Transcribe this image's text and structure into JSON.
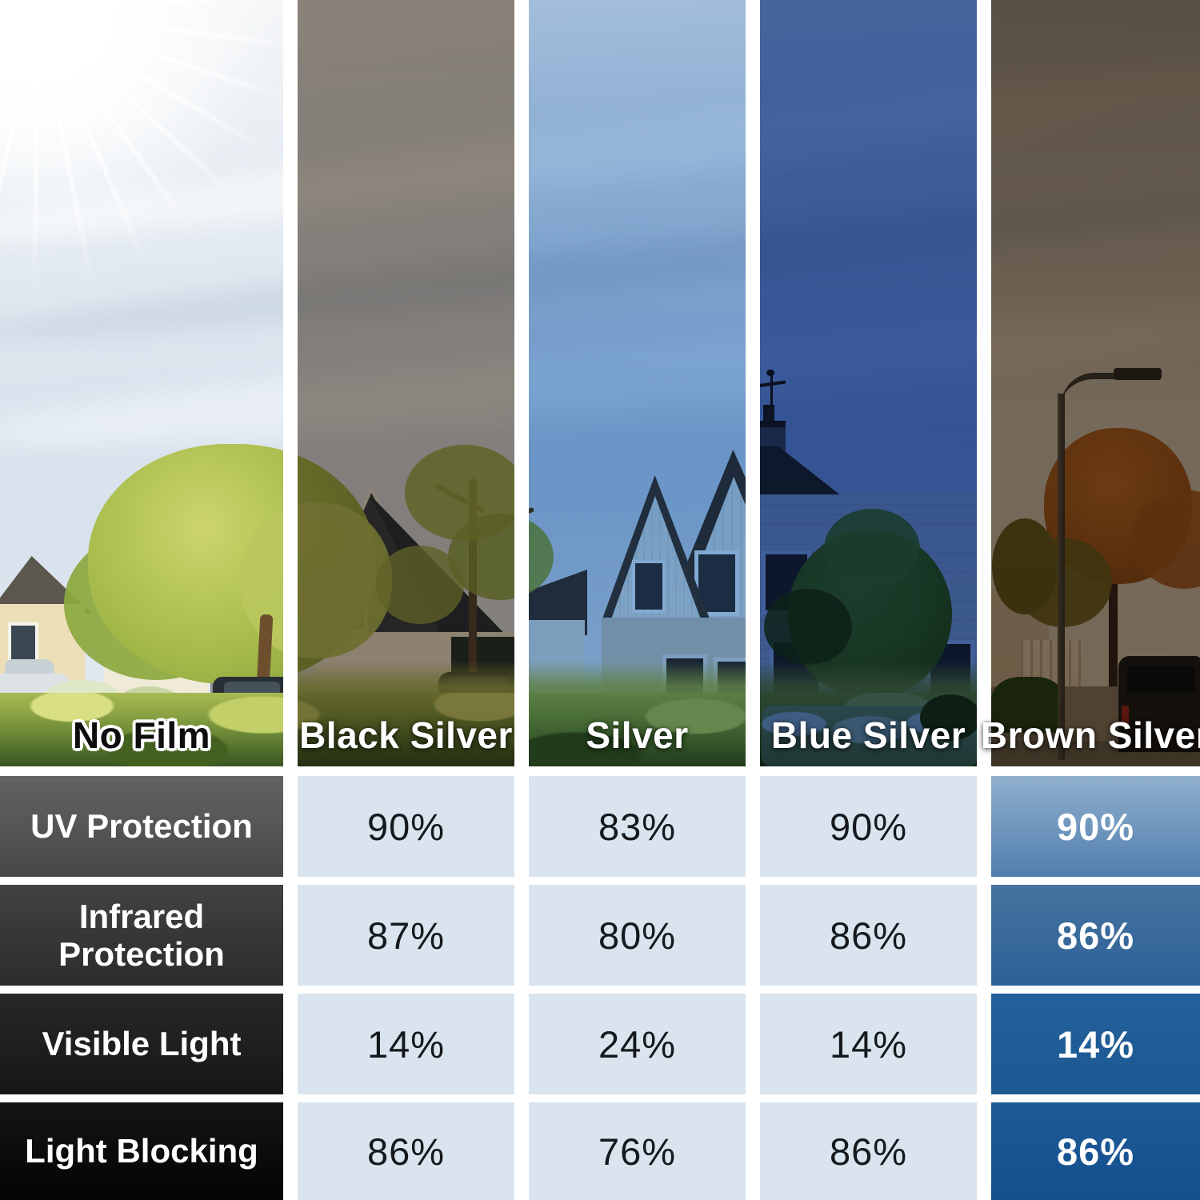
{
  "panels": [
    {
      "label": "No Film"
    },
    {
      "label": "Black Silver"
    },
    {
      "label": "Silver"
    },
    {
      "label": "Blue Silver"
    },
    {
      "label": "Brown Silver"
    }
  ],
  "table": {
    "rows": [
      {
        "label": "UV Protection",
        "values": [
          "90%",
          "83%",
          "90%",
          "90%"
        ]
      },
      {
        "label": "Infrared Protection",
        "values": [
          "87%",
          "80%",
          "86%",
          "86%"
        ]
      },
      {
        "label": "Visible Light",
        "values": [
          "14%",
          "24%",
          "14%",
          "14%"
        ]
      },
      {
        "label": "Light Blocking",
        "values": [
          "86%",
          "76%",
          "86%",
          "86%"
        ]
      }
    ]
  },
  "chart_data": {
    "type": "table",
    "categories": [
      "Black Silver",
      "Silver",
      "Blue Silver",
      "Brown Silver"
    ],
    "series": [
      {
        "name": "UV Protection",
        "values": [
          90,
          83,
          90,
          90
        ]
      },
      {
        "name": "Infrared Protection",
        "values": [
          87,
          80,
          86,
          86
        ]
      },
      {
        "name": "Visible Light",
        "values": [
          14,
          24,
          14,
          14
        ]
      },
      {
        "name": "Light Blocking",
        "values": [
          86,
          76,
          86,
          86
        ]
      }
    ],
    "title": "",
    "legend_position": "none",
    "highlighted_category": "Brown Silver"
  },
  "colors": {
    "value_cell_bg": "#d9e4ee",
    "value_text": "#15181c",
    "row_label_gradient_top": "#616161",
    "row_label_gradient_bottom": "#030303",
    "highlight_gradient_top": "#8fb0cd",
    "highlight_gradient_bottom": "#144f8e",
    "tint_black_silver": "#958c83",
    "tint_silver": "#a7c4e2",
    "tint_blue_silver": "#4967a1",
    "tint_brown_silver": "#806b57"
  }
}
